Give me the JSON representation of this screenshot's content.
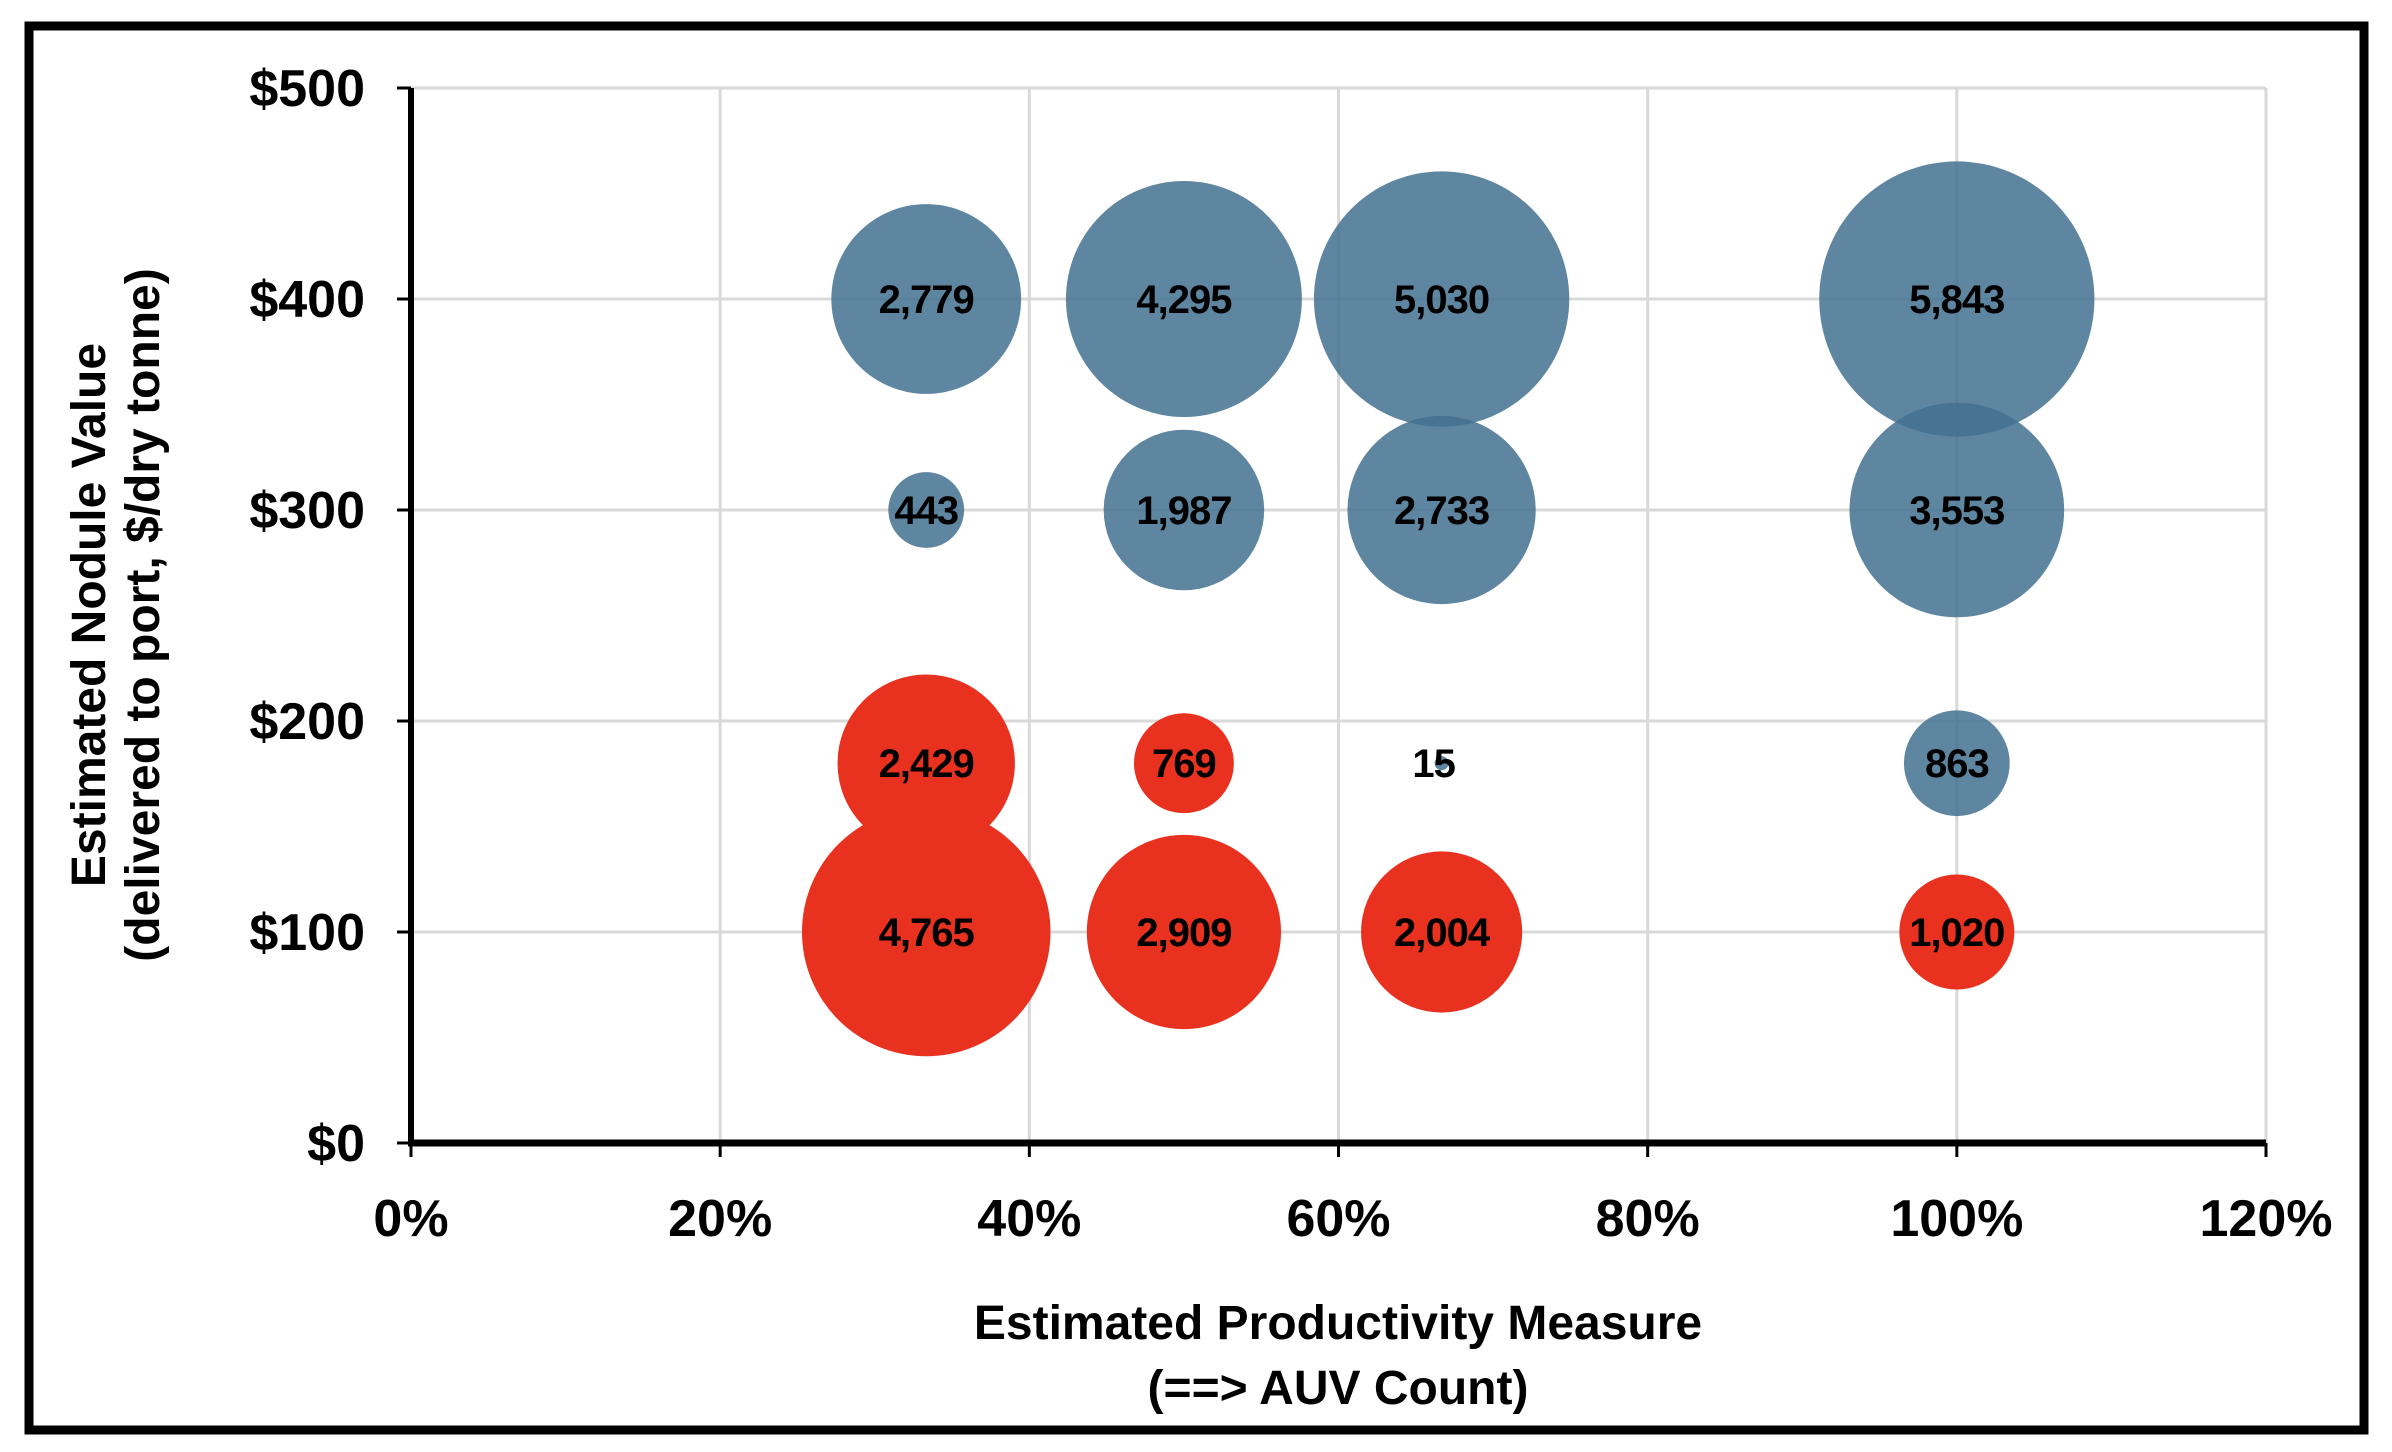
{
  "figure": {
    "background_color": "#ffffff",
    "border_color": "#000000",
    "gridline_color": "#d9d9d9",
    "axis_color": "#000000",
    "label_color": "#000000"
  },
  "y_axis": {
    "title_line1": "Estimated Nodule Value",
    "title_line2": "(delivered to port, $/dry tonne)",
    "ticks": [
      "$0",
      "$100",
      "$200",
      "$300",
      "$400",
      "$500"
    ]
  },
  "x_axis": {
    "title_line1": "Estimated Productivity Measure",
    "title_line2": "(==> AUV Count)",
    "ticks": [
      "0%",
      "20%",
      "40%",
      "60%",
      "80%",
      "100%",
      "120%"
    ]
  },
  "chart_data": {
    "type": "bubble",
    "xlabel": "Estimated Productivity Measure (==> AUV Count)",
    "ylabel": "Estimated Nodule Value (delivered to port, $/dry tonne)",
    "xlim_percent": [
      0,
      120
    ],
    "ylim_dollars": [
      0,
      500
    ],
    "grid": true,
    "legend": "none",
    "size_scale": "radius_px = 1.8 * sqrt(value)",
    "series": [
      {
        "name": "blue-bubbles",
        "color": "#42718F",
        "opacity": 0.85,
        "points": [
          {
            "x": 33.33,
            "y": 400,
            "value": 2779,
            "label": "2,779"
          },
          {
            "x": 50,
            "y": 400,
            "value": 4295,
            "label": "4,295"
          },
          {
            "x": 66.67,
            "y": 400,
            "value": 5030,
            "label": "5,030"
          },
          {
            "x": 100,
            "y": 400,
            "value": 5843,
            "label": "5,843"
          },
          {
            "x": 33.33,
            "y": 300,
            "value": 443,
            "label": "443"
          },
          {
            "x": 50,
            "y": 300,
            "value": 1987,
            "label": "1,987"
          },
          {
            "x": 66.67,
            "y": 300,
            "value": 2733,
            "label": "2,733"
          },
          {
            "x": 66.67,
            "y": 180,
            "value": 15,
            "label": "15",
            "label_dx": -8
          },
          {
            "x": 100,
            "y": 300,
            "value": 3553,
            "label": "3,553"
          },
          {
            "x": 100,
            "y": 180,
            "value": 863,
            "label": "863"
          }
        ]
      },
      {
        "name": "red-bubbles",
        "color": "#E8321F",
        "opacity": 1,
        "points": [
          {
            "x": 33.33,
            "y": 180,
            "value": 2429,
            "label": "2,429"
          },
          {
            "x": 50,
            "y": 180,
            "value": 769,
            "label": "769"
          },
          {
            "x": 33.33,
            "y": 100,
            "value": 4765,
            "label": "4,765"
          },
          {
            "x": 50,
            "y": 100,
            "value": 2909,
            "label": "2,909"
          },
          {
            "x": 66.67,
            "y": 100,
            "value": 2004,
            "label": "2,004"
          },
          {
            "x": 100,
            "y": 100,
            "value": 1020,
            "label": "1,020"
          }
        ]
      }
    ]
  }
}
